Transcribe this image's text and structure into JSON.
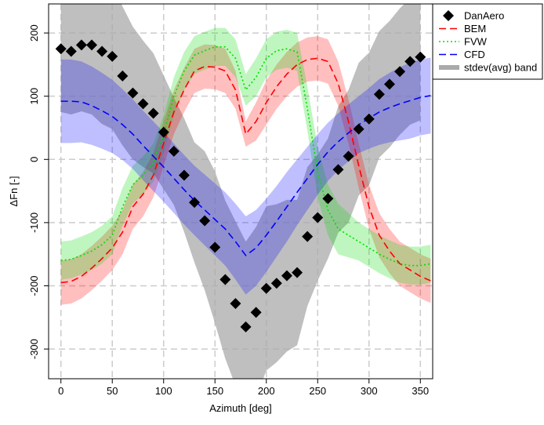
{
  "chart_data": {
    "type": "line",
    "x_label": "Azimuth [deg]",
    "y_label": "ΔFn [-]",
    "xlim": [
      -12,
      362
    ],
    "ylim": [
      -347,
      246
    ],
    "xticks": [
      0,
      50,
      100,
      150,
      200,
      250,
      300,
      350
    ],
    "yticks": [
      -300,
      -200,
      -100,
      0,
      100,
      200
    ],
    "grid": true,
    "legend": "top-right-outside",
    "band_label": "stdev(avg) band",
    "band_color": "#aaaaaa",
    "series": [
      {
        "name": "DanAero",
        "color": "#000000",
        "style": "points",
        "x": [
          0,
          10,
          20,
          30,
          40,
          50,
          60,
          70,
          80,
          90,
          100,
          110,
          120,
          130,
          140,
          150,
          160,
          170,
          180,
          190,
          200,
          210,
          220,
          230,
          240,
          250,
          260,
          270,
          280,
          290,
          300,
          310,
          320,
          330,
          340,
          350
        ],
        "values": [
          175,
          171,
          181,
          181,
          171,
          163,
          132,
          105,
          88,
          73,
          43,
          13,
          -25,
          -68,
          -97,
          -139,
          -190,
          -228,
          -265,
          -242,
          -204,
          -196,
          -184,
          -179,
          -122,
          -92,
          -62,
          -16,
          5,
          48,
          64,
          103,
          119,
          139,
          155,
          162
        ],
        "stdev": [
          100,
          100,
          105,
          110,
          115,
          115,
          110,
          105,
          100,
          95,
          90,
          85,
          90,
          95,
          110,
          120,
          125,
          130,
          135,
          135,
          130,
          125,
          120,
          115,
          110,
          100,
          95,
          100,
          105,
          105,
          105,
          100,
          100,
          100,
          100,
          100
        ]
      },
      {
        "name": "BEM",
        "color": "#ff0000",
        "style": "dashed",
        "x": [
          0,
          10,
          20,
          30,
          40,
          50,
          60,
          70,
          80,
          90,
          100,
          110,
          120,
          130,
          140,
          150,
          160,
          170,
          180,
          190,
          200,
          210,
          220,
          230,
          240,
          250,
          260,
          270,
          280,
          290,
          300,
          310,
          320,
          330,
          340,
          350,
          360
        ],
        "values": [
          -195,
          -193,
          -185,
          -172,
          -157,
          -140,
          -115,
          -75,
          -55,
          -25,
          25,
          75,
          110,
          140,
          147,
          146,
          140,
          110,
          40,
          60,
          90,
          115,
          135,
          150,
          158,
          160,
          155,
          120,
          60,
          -10,
          -75,
          -120,
          -145,
          -165,
          -175,
          -185,
          -192
        ],
        "stdev": [
          35,
          35,
          35,
          35,
          35,
          35,
          35,
          35,
          35,
          35,
          35,
          35,
          35,
          35,
          35,
          35,
          35,
          30,
          20,
          30,
          35,
          35,
          35,
          35,
          35,
          35,
          35,
          35,
          35,
          35,
          35,
          35,
          35,
          35,
          35,
          35,
          35
        ]
      },
      {
        "name": "FVW",
        "color": "#00dd00",
        "style": "dotted",
        "x": [
          0,
          10,
          20,
          30,
          40,
          50,
          60,
          70,
          80,
          90,
          100,
          110,
          120,
          130,
          140,
          150,
          160,
          170,
          180,
          190,
          200,
          210,
          220,
          230,
          240,
          250,
          260,
          270,
          280,
          290,
          300,
          310,
          320,
          330,
          340,
          350,
          360
        ],
        "values": [
          -160,
          -158,
          -152,
          -145,
          -135,
          -120,
          -75,
          -40,
          -25,
          -5,
          40,
          100,
          140,
          165,
          172,
          178,
          178,
          160,
          110,
          130,
          160,
          172,
          175,
          170,
          80,
          -20,
          -80,
          -110,
          -120,
          -130,
          -140,
          -150,
          -158,
          -165,
          -168,
          -168,
          -165
        ],
        "stdev": [
          30,
          30,
          30,
          30,
          30,
          30,
          30,
          30,
          30,
          30,
          30,
          30,
          30,
          30,
          30,
          30,
          30,
          30,
          25,
          30,
          30,
          30,
          30,
          30,
          35,
          40,
          40,
          40,
          35,
          30,
          30,
          30,
          30,
          30,
          30,
          30,
          30
        ]
      },
      {
        "name": "CFD",
        "color": "#0000ff",
        "style": "dashed",
        "x": [
          0,
          10,
          20,
          30,
          40,
          50,
          60,
          70,
          80,
          90,
          100,
          110,
          120,
          130,
          140,
          150,
          160,
          170,
          180,
          190,
          200,
          210,
          220,
          230,
          240,
          250,
          260,
          270,
          280,
          290,
          300,
          310,
          320,
          330,
          340,
          350,
          360
        ],
        "values": [
          92,
          92,
          91,
          85,
          77,
          68,
          55,
          40,
          22,
          5,
          -12,
          -30,
          -48,
          -65,
          -80,
          -95,
          -110,
          -130,
          -152,
          -140,
          -120,
          -98,
          -75,
          -52,
          -30,
          -8,
          12,
          28,
          42,
          55,
          65,
          75,
          82,
          88,
          93,
          98,
          101
        ],
        "stdev": [
          66,
          66,
          64,
          62,
          60,
          58,
          56,
          55,
          55,
          55,
          55,
          55,
          55,
          55,
          56,
          57,
          58,
          60,
          62,
          60,
          58,
          56,
          55,
          52,
          50,
          48,
          46,
          45,
          45,
          45,
          48,
          52,
          55,
          58,
          60,
          60,
          60
        ]
      }
    ]
  }
}
